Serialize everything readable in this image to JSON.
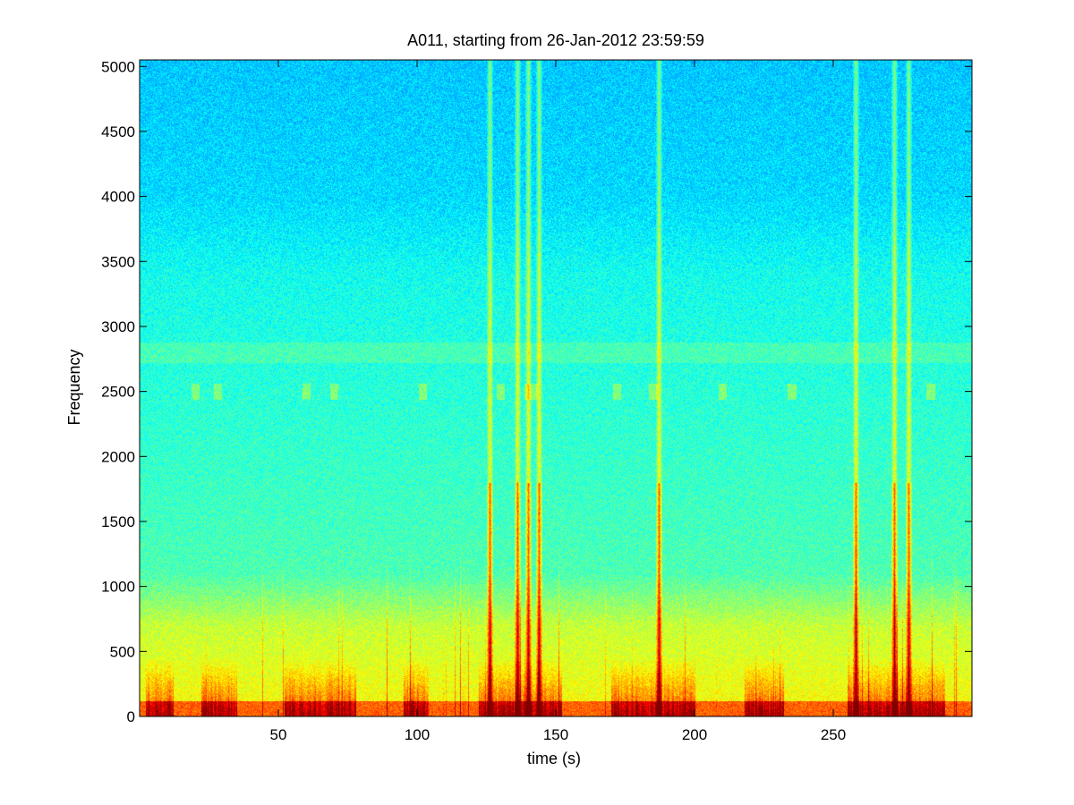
{
  "chart_data": {
    "type": "heatmap",
    "title": "A011, starting from 26-Jan-2012 23:59:59",
    "xlabel": "time (s)",
    "ylabel": "Frequency",
    "xlim": [
      0,
      300
    ],
    "ylim": [
      0,
      5050
    ],
    "x_ticks": [
      50,
      100,
      150,
      200,
      250
    ],
    "y_ticks": [
      0,
      500,
      1000,
      1500,
      2000,
      2500,
      3000,
      3500,
      4000,
      4500,
      5000
    ],
    "colormap": "jet",
    "grid": false,
    "broadband_transients_s": [
      126,
      136,
      140,
      144,
      187,
      258,
      272,
      277
    ],
    "tonal_band_hz": [
      2480,
      2520,
      2800
    ],
    "low_freq_energy_band_hz": [
      0,
      700
    ]
  }
}
